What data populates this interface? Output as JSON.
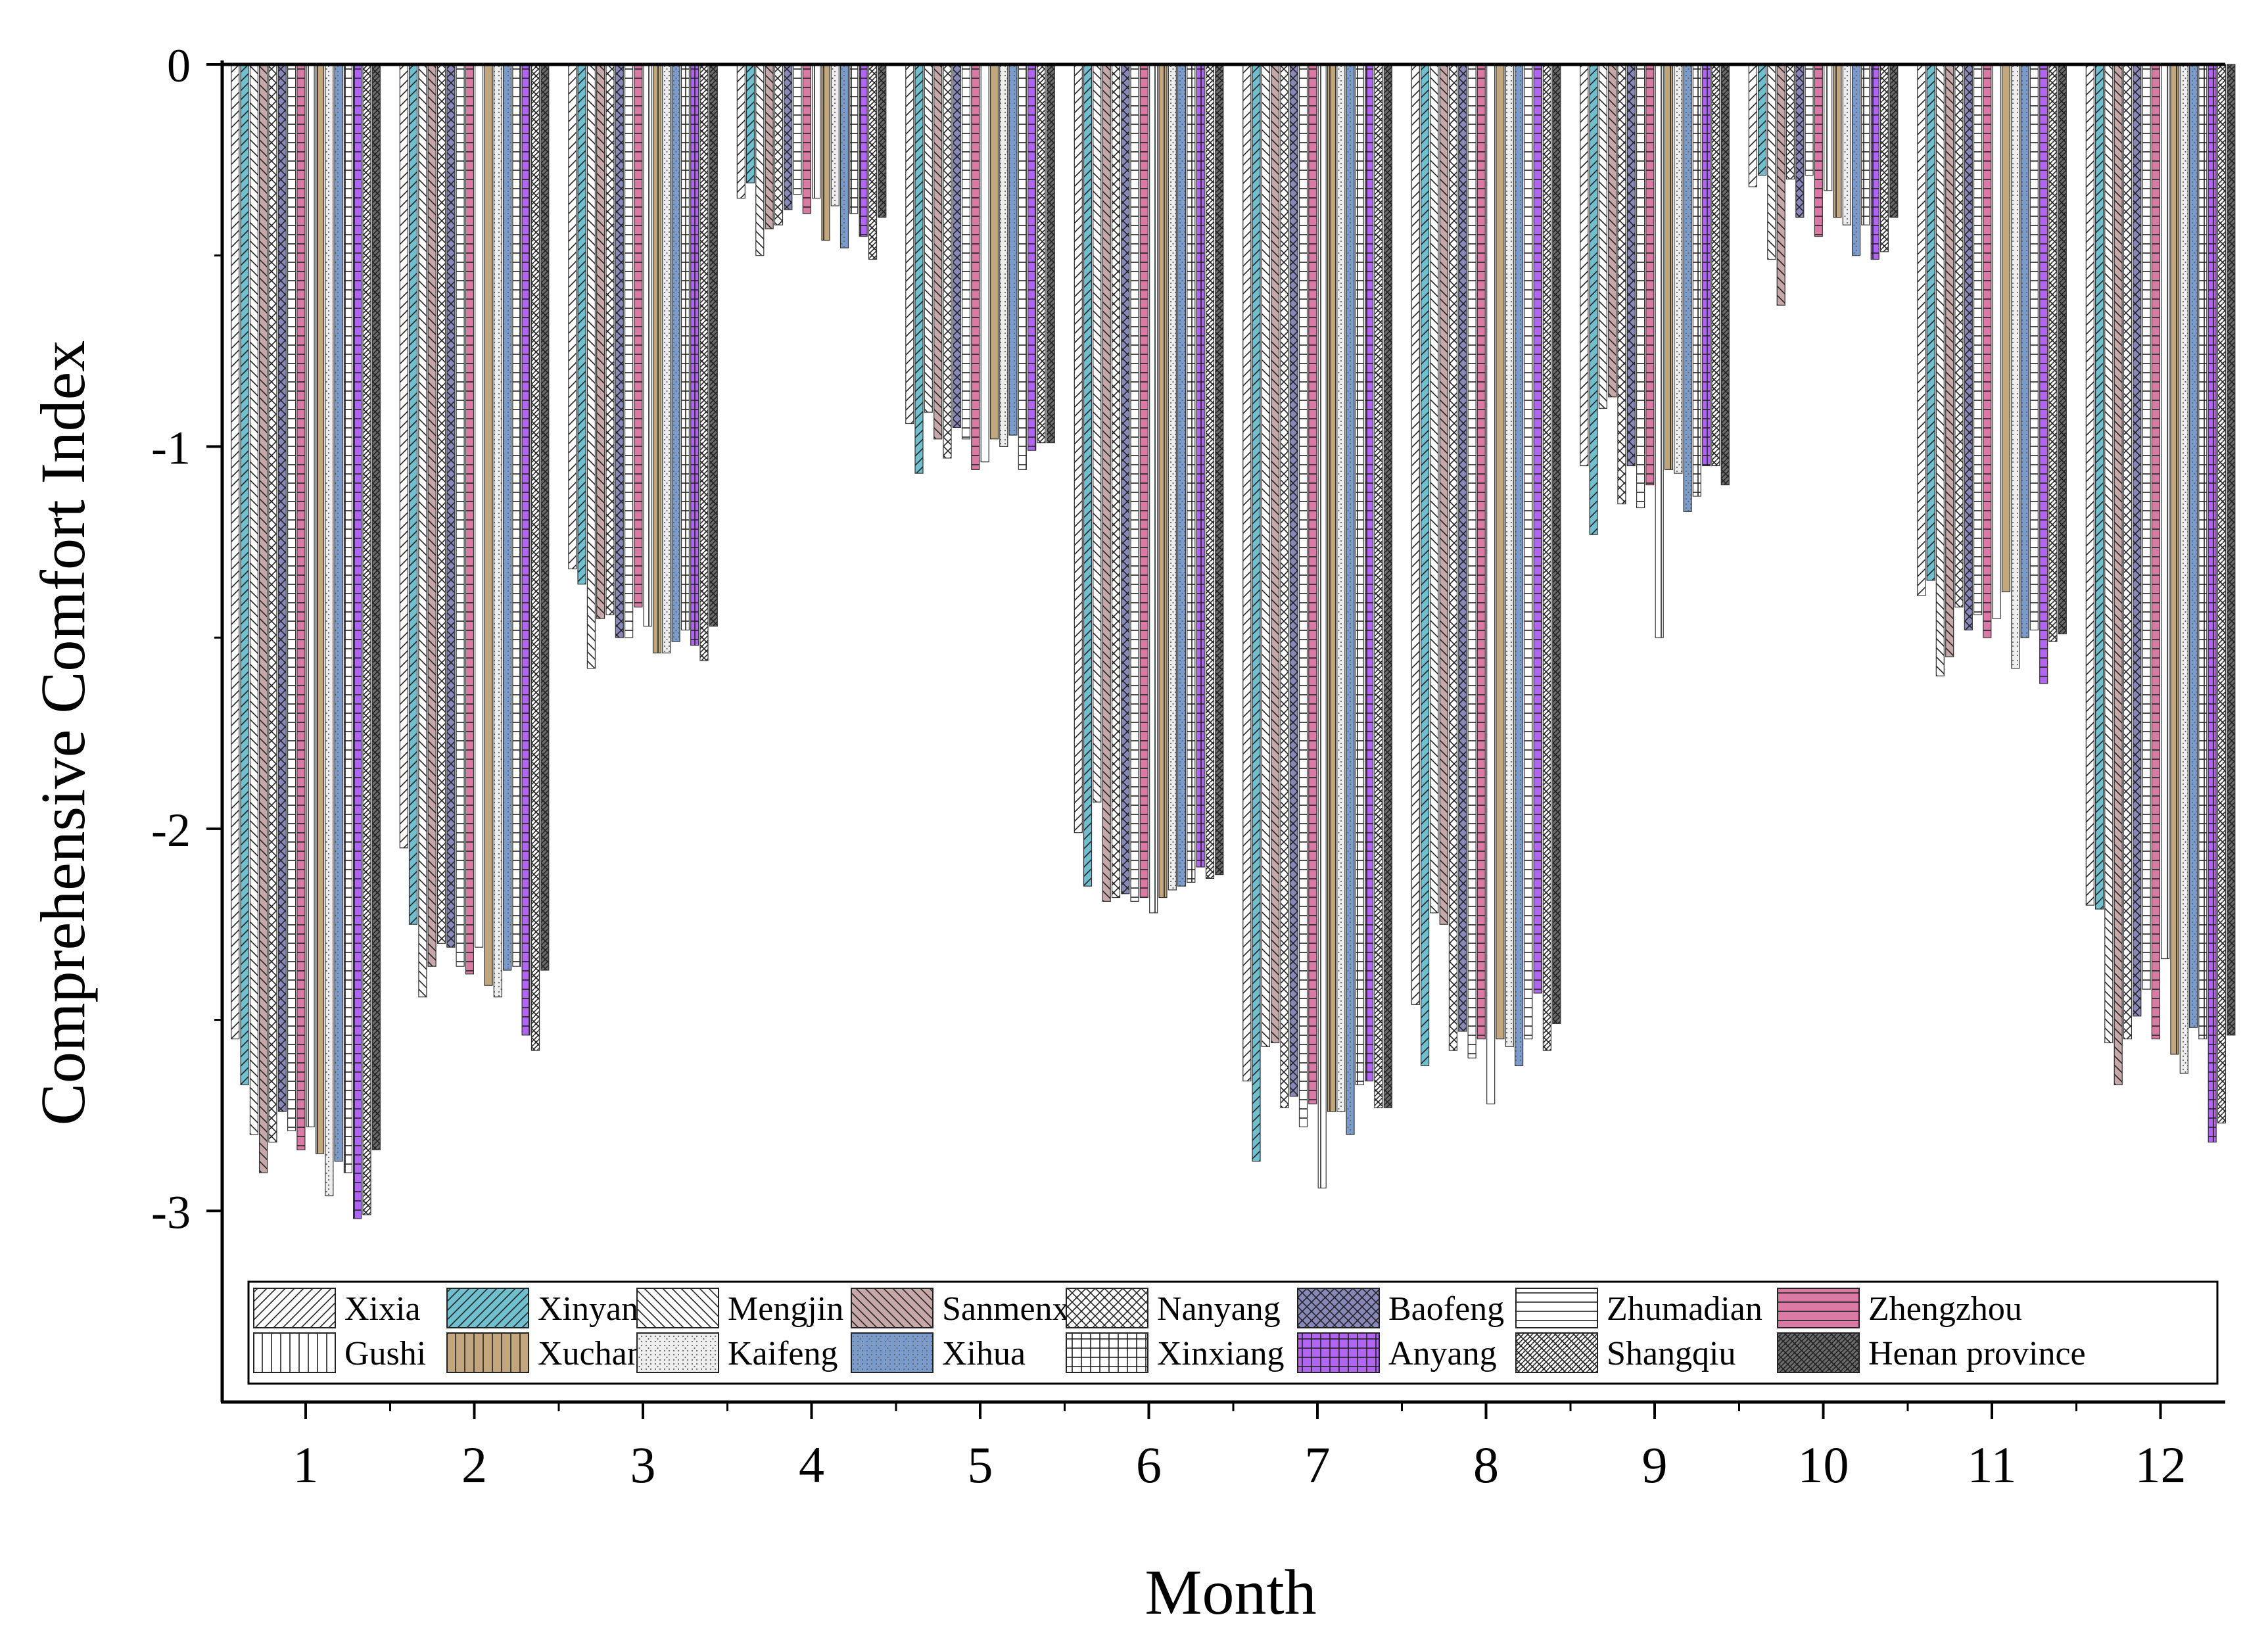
{
  "chart_data": {
    "type": "bar",
    "title": "",
    "xlabel": "Month",
    "ylabel": "Comprehensive Comfort Index",
    "ylim": [
      -3.5,
      0
    ],
    "yticks": [
      0,
      -1,
      -2,
      -3
    ],
    "ytick_labels": [
      "0",
      "-1",
      "-2",
      "-3"
    ],
    "grid": false,
    "legend_position": "bottom",
    "categories": [
      "1",
      "2",
      "3",
      "4",
      "5",
      "6",
      "7",
      "8",
      "9",
      "10",
      "11",
      "12"
    ],
    "series": [
      {
        "name": "Xixia",
        "color": "#ffffff",
        "pattern": "fwd-diag",
        "values": [
          -2.55,
          -2.05,
          -1.32,
          -0.35,
          -0.94,
          -2.01,
          -2.66,
          -2.46,
          -1.05,
          -0.32,
          -1.39,
          -2.2
        ]
      },
      {
        "name": "Xinyang",
        "color": "#6fbfcf",
        "pattern": "fwd-diag",
        "values": [
          -2.67,
          -2.25,
          -1.36,
          -0.31,
          -1.07,
          -2.15,
          -2.87,
          -2.62,
          -1.23,
          -0.29,
          -1.35,
          -2.21
        ]
      },
      {
        "name": "Mengjin",
        "color": "#ffffff",
        "pattern": "back-diag",
        "values": [
          -2.8,
          -2.44,
          -1.58,
          -0.5,
          -0.91,
          -1.93,
          -2.57,
          -2.22,
          -0.9,
          -0.51,
          -1.6,
          -2.56
        ]
      },
      {
        "name": "Sanmenxia",
        "color": "#c6a8a8",
        "pattern": "back-diag",
        "values": [
          -2.9,
          -2.36,
          -1.45,
          -0.43,
          -0.98,
          -2.19,
          -2.56,
          -2.25,
          -0.87,
          -0.63,
          -1.55,
          -2.67
        ]
      },
      {
        "name": "Nanyang",
        "color": "#ffffff",
        "pattern": "crosshatch-diag",
        "values": [
          -2.82,
          -2.3,
          -1.44,
          -0.42,
          -1.03,
          -2.18,
          -2.73,
          -2.58,
          -1.15,
          -0.3,
          -1.42,
          -2.55
        ]
      },
      {
        "name": "Baofeng",
        "color": "#8888bb",
        "pattern": "crosshatch-diag",
        "values": [
          -2.74,
          -2.31,
          -1.5,
          -0.38,
          -0.95,
          -2.17,
          -2.7,
          -2.53,
          -1.05,
          -0.4,
          -1.48,
          -2.49
        ]
      },
      {
        "name": "Zhumadian",
        "color": "#ffffff",
        "pattern": "horizontal",
        "values": [
          -2.79,
          -2.36,
          -1.5,
          -0.34,
          -0.98,
          -2.19,
          -2.78,
          -2.6,
          -1.16,
          -0.29,
          -1.44,
          -2.42
        ]
      },
      {
        "name": "Zhengzhou",
        "color": "#d97aa4",
        "pattern": "horizontal",
        "values": [
          -2.84,
          -2.38,
          -1.42,
          -0.39,
          -1.06,
          -2.18,
          -2.72,
          -2.55,
          -1.1,
          -0.45,
          -1.5,
          -2.55
        ]
      },
      {
        "name": "Gushi",
        "color": "#ffffff",
        "pattern": "vertical",
        "values": [
          -2.78,
          -2.31,
          -1.47,
          -0.35,
          -1.04,
          -2.22,
          -2.94,
          -2.72,
          -1.5,
          -0.33,
          -1.45,
          -2.34
        ]
      },
      {
        "name": "Xuchang",
        "color": "#c2a77e",
        "pattern": "vertical",
        "values": [
          -2.85,
          -2.41,
          -1.54,
          -0.46,
          -0.98,
          -2.18,
          -2.74,
          -2.55,
          -1.06,
          -0.4,
          -1.38,
          -2.59
        ]
      },
      {
        "name": "Kaifeng",
        "color": "#eeeeee",
        "pattern": "dots",
        "values": [
          -2.96,
          -2.44,
          -1.54,
          -0.37,
          -1.0,
          -2.16,
          -2.74,
          -2.57,
          -1.07,
          -0.42,
          -1.58,
          -2.64
        ]
      },
      {
        "name": "Xihua",
        "color": "#7a9ccc",
        "pattern": "dots",
        "values": [
          -2.87,
          -2.37,
          -1.51,
          -0.48,
          -0.97,
          -2.15,
          -2.8,
          -2.62,
          -1.17,
          -0.5,
          -1.5,
          -2.52
        ]
      },
      {
        "name": "Xinxiang",
        "color": "#ffffff",
        "pattern": "grid",
        "values": [
          -2.9,
          -2.36,
          -1.48,
          -0.39,
          -1.06,
          -2.14,
          -2.67,
          -2.55,
          -1.13,
          -0.42,
          -1.48,
          -2.55
        ]
      },
      {
        "name": "Anyang",
        "color": "#b066f0",
        "pattern": "grid",
        "values": [
          -3.02,
          -2.54,
          -1.52,
          -0.45,
          -1.01,
          -2.1,
          -2.66,
          -2.43,
          -1.05,
          -0.51,
          -1.62,
          -2.82
        ]
      },
      {
        "name": "Shangqiu",
        "color": "#ffffff",
        "pattern": "diamond",
        "values": [
          -3.01,
          -2.58,
          -1.56,
          -0.51,
          -0.99,
          -2.13,
          -2.73,
          -2.58,
          -1.05,
          -0.49,
          -1.51,
          -2.77
        ]
      },
      {
        "name": "Henan province",
        "color": "#6b6b6b",
        "pattern": "diamond",
        "values": [
          -2.84,
          -2.37,
          -1.47,
          -0.4,
          -0.99,
          -2.12,
          -2.73,
          -2.51,
          -1.1,
          -0.4,
          -1.49,
          -2.54
        ]
      }
    ]
  }
}
